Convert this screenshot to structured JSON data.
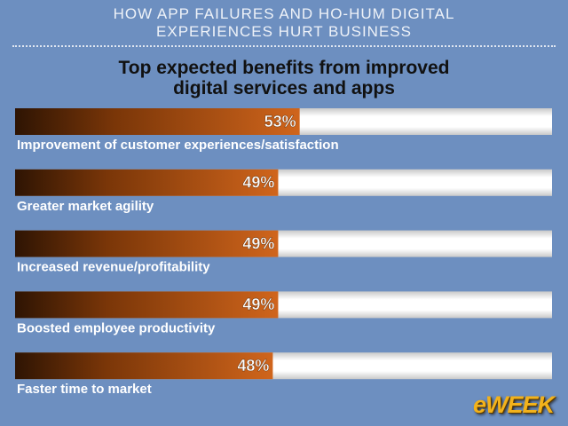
{
  "header": {
    "lines": [
      "HOW APP FAILURES AND HO-HUM DIGITAL",
      "EXPERIENCES HURT BUSINESS"
    ]
  },
  "chart_data": {
    "type": "hbar",
    "title": "Top expected benefits from improved digital services and apps",
    "categories": [
      "Improvement of customer experiences/satisfaction",
      "Greater market agility",
      "Increased revenue/profitability",
      "Boosted employee productivity",
      "Faster time to market"
    ],
    "values": [
      53,
      49,
      49,
      49,
      48
    ],
    "value_labels": [
      "53%",
      "49%",
      "49%",
      "49%",
      "48%"
    ],
    "color": "#d0651c",
    "xlim": [
      0,
      100
    ]
  },
  "logo": "eWEEK"
}
